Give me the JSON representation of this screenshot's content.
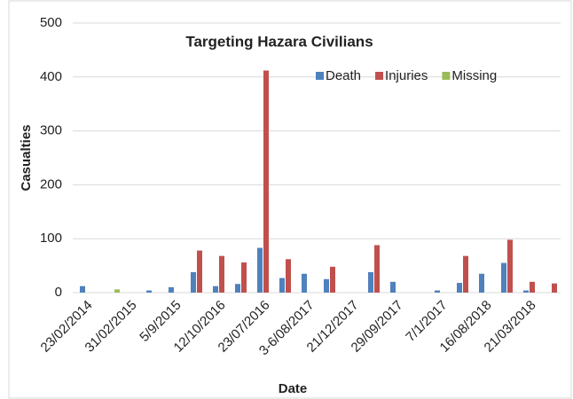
{
  "chart_data": {
    "type": "bar",
    "title": "Targeting Hazara Civilians",
    "x_label": "Date",
    "y_label": "Casualties",
    "categories": [
      "23/02/2014",
      null,
      "31/02/2015",
      null,
      "5/9/2015",
      null,
      "12/10/2016",
      null,
      "23/07/2016",
      null,
      "3-6/08/2017",
      null,
      "21/12/2017",
      null,
      "29/09/2017",
      null,
      "7/1/2017",
      null,
      "16/08/2018",
      null,
      "21/03/2018",
      null
    ],
    "series": [
      {
        "name": "Death",
        "color": "#4f81bd",
        "values": [
          12,
          0,
          0,
          4,
          10,
          38,
          12,
          16,
          83,
          27,
          35,
          25,
          0,
          38,
          20,
          0,
          4,
          18,
          35,
          55,
          4,
          0
        ]
      },
      {
        "name": "Injuries",
        "color": "#c0504d",
        "values": [
          0,
          0,
          0,
          0,
          0,
          78,
          68,
          56,
          412,
          62,
          0,
          48,
          0,
          88,
          0,
          0,
          0,
          68,
          0,
          98,
          20,
          17
        ]
      },
      {
        "name": "Missing",
        "color": "#9bbb59",
        "values": [
          0,
          6,
          0,
          0,
          0,
          0,
          0,
          0,
          0,
          0,
          0,
          0,
          0,
          0,
          0,
          0,
          0,
          0,
          0,
          0,
          0,
          0
        ]
      }
    ],
    "ylim": [
      0,
      500
    ],
    "yticks": [
      0,
      100,
      200,
      300,
      400,
      500
    ],
    "grid": true,
    "legend": "top-right"
  }
}
